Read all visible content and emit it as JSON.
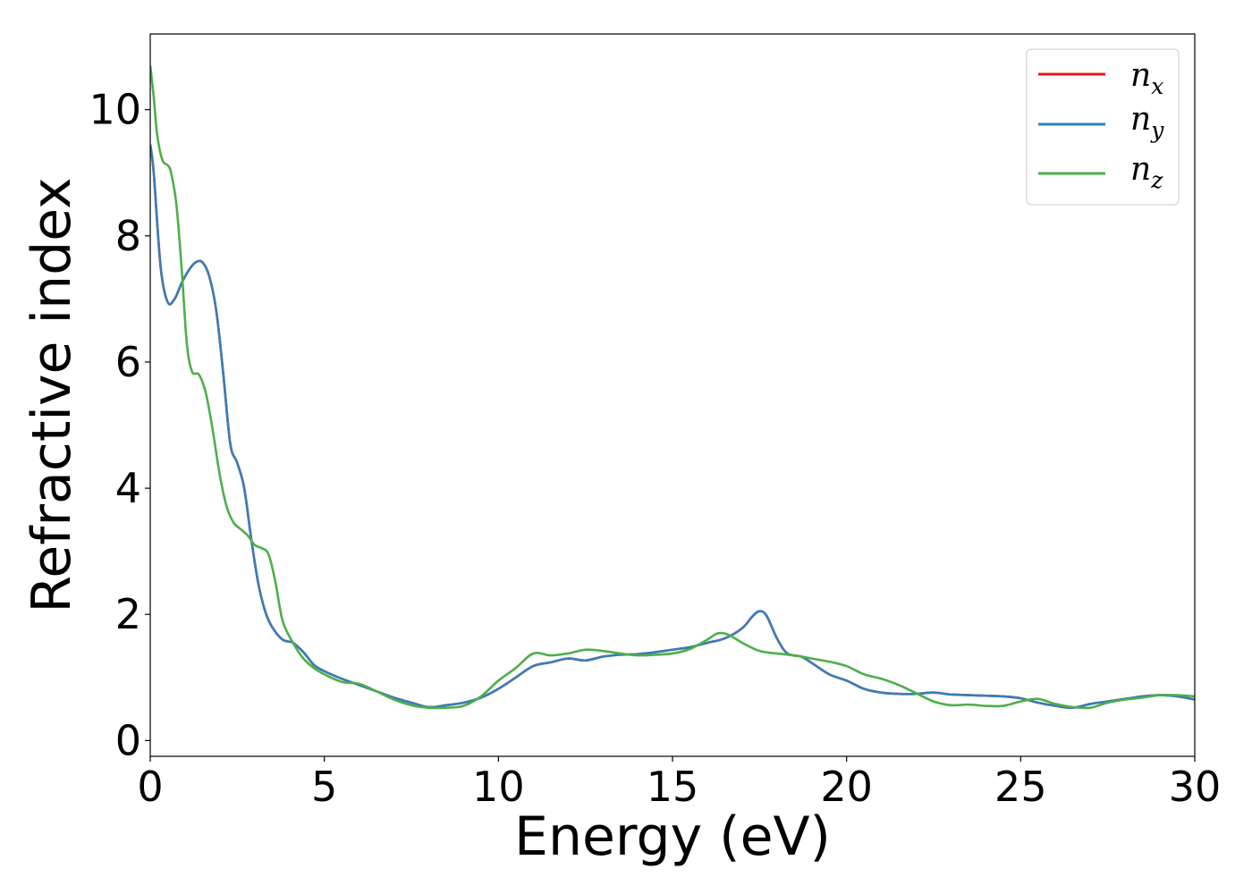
{
  "chart_data": {
    "type": "line",
    "title": "",
    "xlabel": "Energy (eV)",
    "ylabel": "Refractive index",
    "xlim": [
      0,
      30
    ],
    "ylim": [
      -0.25,
      11.2
    ],
    "xticks": [
      0,
      5,
      10,
      15,
      20,
      25,
      30
    ],
    "yticks": [
      0,
      2,
      4,
      6,
      8,
      10
    ],
    "grid": false,
    "legend_position": "top-right",
    "series": [
      {
        "name": "n",
        "subscript": "x",
        "color": "#e41a1c",
        "x": [
          0,
          0.1,
          0.3,
          0.5,
          0.7,
          0.9,
          1.1,
          1.3,
          1.5,
          1.7,
          1.9,
          2.1,
          2.3,
          2.5,
          2.7,
          2.9,
          3.1,
          3.3,
          3.5,
          3.8,
          4.1,
          4.4,
          4.7,
          5.0,
          5.5,
          6.0,
          6.5,
          7.0,
          7.5,
          8.0,
          8.5,
          9.0,
          9.5,
          10.0,
          10.5,
          11.0,
          11.5,
          12.0,
          12.5,
          13.0,
          13.5,
          14.0,
          14.5,
          15.0,
          15.5,
          16.0,
          16.5,
          17.0,
          17.3,
          17.5,
          17.7,
          18.0,
          18.3,
          18.7,
          19.0,
          19.5,
          20.0,
          20.5,
          21.0,
          21.5,
          22.0,
          22.5,
          23.0,
          23.5,
          24.0,
          24.5,
          25.0,
          25.5,
          26.0,
          26.5,
          27.0,
          27.5,
          28.0,
          28.5,
          29.0,
          29.5,
          30.0
        ],
        "y": [
          9.45,
          9.0,
          7.5,
          6.95,
          7.0,
          7.25,
          7.45,
          7.58,
          7.58,
          7.35,
          6.8,
          5.8,
          4.7,
          4.4,
          4.0,
          3.2,
          2.5,
          2.05,
          1.8,
          1.6,
          1.55,
          1.4,
          1.2,
          1.1,
          0.98,
          0.88,
          0.78,
          0.68,
          0.6,
          0.53,
          0.56,
          0.6,
          0.68,
          0.82,
          1.0,
          1.18,
          1.24,
          1.3,
          1.27,
          1.33,
          1.36,
          1.37,
          1.4,
          1.44,
          1.48,
          1.55,
          1.62,
          1.78,
          1.97,
          2.05,
          1.98,
          1.62,
          1.38,
          1.33,
          1.23,
          1.05,
          0.95,
          0.82,
          0.76,
          0.74,
          0.74,
          0.76,
          0.73,
          0.72,
          0.71,
          0.7,
          0.67,
          0.6,
          0.55,
          0.52,
          0.58,
          0.62,
          0.66,
          0.7,
          0.72,
          0.7,
          0.65
        ]
      },
      {
        "name": "n",
        "subscript": "y",
        "color": "#377eb8",
        "x": [
          0,
          0.1,
          0.3,
          0.5,
          0.7,
          0.9,
          1.1,
          1.3,
          1.5,
          1.7,
          1.9,
          2.1,
          2.3,
          2.5,
          2.7,
          2.9,
          3.1,
          3.3,
          3.5,
          3.8,
          4.1,
          4.4,
          4.7,
          5.0,
          5.5,
          6.0,
          6.5,
          7.0,
          7.5,
          8.0,
          8.5,
          9.0,
          9.5,
          10.0,
          10.5,
          11.0,
          11.5,
          12.0,
          12.5,
          13.0,
          13.5,
          14.0,
          14.5,
          15.0,
          15.5,
          16.0,
          16.5,
          17.0,
          17.3,
          17.5,
          17.7,
          18.0,
          18.3,
          18.7,
          19.0,
          19.5,
          20.0,
          20.5,
          21.0,
          21.5,
          22.0,
          22.5,
          23.0,
          23.5,
          24.0,
          24.5,
          25.0,
          25.5,
          26.0,
          26.5,
          27.0,
          27.5,
          28.0,
          28.5,
          29.0,
          29.5,
          30.0
        ],
        "y": [
          9.45,
          9.0,
          7.5,
          6.95,
          7.0,
          7.25,
          7.45,
          7.58,
          7.58,
          7.35,
          6.8,
          5.8,
          4.7,
          4.4,
          4.0,
          3.2,
          2.5,
          2.05,
          1.8,
          1.6,
          1.55,
          1.4,
          1.2,
          1.1,
          0.98,
          0.88,
          0.78,
          0.68,
          0.6,
          0.53,
          0.56,
          0.6,
          0.68,
          0.82,
          1.0,
          1.18,
          1.24,
          1.3,
          1.27,
          1.33,
          1.36,
          1.37,
          1.4,
          1.44,
          1.48,
          1.55,
          1.62,
          1.78,
          1.97,
          2.05,
          1.98,
          1.62,
          1.38,
          1.33,
          1.23,
          1.05,
          0.95,
          0.82,
          0.76,
          0.74,
          0.74,
          0.76,
          0.73,
          0.72,
          0.71,
          0.7,
          0.67,
          0.6,
          0.55,
          0.52,
          0.58,
          0.62,
          0.66,
          0.7,
          0.72,
          0.7,
          0.65
        ]
      },
      {
        "name": "n",
        "subscript": "z",
        "color": "#4daf4a",
        "x": [
          0,
          0.1,
          0.2,
          0.35,
          0.5,
          0.6,
          0.75,
          0.9,
          1.05,
          1.2,
          1.4,
          1.6,
          1.8,
          2.0,
          2.2,
          2.4,
          2.6,
          2.8,
          3.0,
          3.2,
          3.4,
          3.6,
          3.8,
          4.1,
          4.4,
          4.7,
          5.0,
          5.5,
          6.0,
          6.5,
          7.0,
          7.5,
          8.0,
          8.5,
          9.0,
          9.5,
          10.0,
          10.5,
          11.0,
          11.5,
          12.0,
          12.5,
          13.0,
          13.5,
          14.0,
          14.5,
          15.0,
          15.5,
          16.0,
          16.3,
          16.6,
          17.0,
          17.5,
          18.0,
          18.5,
          19.0,
          19.5,
          20.0,
          20.5,
          21.0,
          21.5,
          22.0,
          22.5,
          23.0,
          23.5,
          24.0,
          24.5,
          25.0,
          25.5,
          26.0,
          26.5,
          27.0,
          27.5,
          28.0,
          28.5,
          29.0,
          29.5,
          30.0
        ],
        "y": [
          10.7,
          10.2,
          9.6,
          9.2,
          9.12,
          9.0,
          8.5,
          7.5,
          6.3,
          5.85,
          5.8,
          5.5,
          4.9,
          4.2,
          3.7,
          3.45,
          3.35,
          3.25,
          3.1,
          3.05,
          2.95,
          2.5,
          1.9,
          1.55,
          1.3,
          1.15,
          1.05,
          0.93,
          0.9,
          0.78,
          0.65,
          0.56,
          0.52,
          0.52,
          0.55,
          0.7,
          0.95,
          1.15,
          1.38,
          1.35,
          1.38,
          1.44,
          1.42,
          1.38,
          1.35,
          1.36,
          1.38,
          1.45,
          1.6,
          1.7,
          1.68,
          1.55,
          1.42,
          1.38,
          1.35,
          1.3,
          1.25,
          1.18,
          1.05,
          0.98,
          0.88,
          0.75,
          0.62,
          0.56,
          0.57,
          0.55,
          0.55,
          0.62,
          0.66,
          0.58,
          0.53,
          0.52,
          0.6,
          0.65,
          0.68,
          0.72,
          0.72,
          0.7
        ]
      }
    ]
  }
}
